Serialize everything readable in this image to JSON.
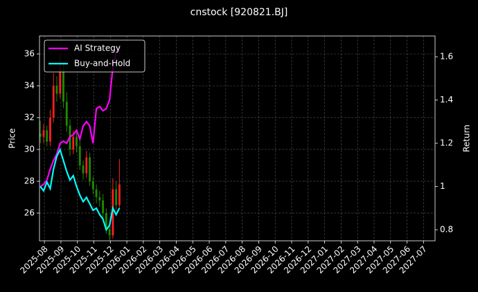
{
  "chart_data": {
    "type": "candlestick",
    "title": "cnstock [920821.BJ]",
    "ylabel": "Price",
    "y2label": "Return",
    "x": [
      -0.25,
      -0.05,
      0.15,
      0.35,
      0.55,
      0.75,
      0.95,
      1.15,
      1.35,
      1.55,
      1.75,
      1.95,
      2.15,
      2.35,
      2.55,
      2.75,
      2.95,
      3.15,
      3.35,
      3.55,
      3.75,
      3.95,
      4.15,
      4.35,
      4.55
    ],
    "open": [
      31.0,
      30.8,
      31.2,
      30.5,
      32.0,
      34.0,
      33.5,
      35.0,
      33.0,
      31.5,
      30.0,
      30.8,
      30.2,
      29.0,
      28.5,
      29.5,
      28.0,
      27.5,
      27.0,
      26.8,
      26.0,
      25.0,
      24.6,
      27.5,
      26.5
    ],
    "high": [
      31.8,
      31.6,
      31.5,
      32.5,
      34.8,
      34.6,
      36.0,
      35.5,
      33.6,
      31.9,
      31.2,
      31.1,
      30.6,
      29.3,
      29.9,
      29.8,
      28.3,
      27.8,
      27.4,
      27.2,
      26.3,
      25.4,
      28.2,
      28.0,
      29.4
    ],
    "low": [
      30.4,
      30.4,
      30.2,
      30.2,
      31.7,
      33.0,
      33.2,
      32.6,
      31.1,
      29.6,
      29.7,
      29.8,
      28.7,
      28.1,
      28.2,
      27.7,
      27.2,
      26.6,
      26.4,
      25.7,
      24.7,
      24.3,
      24.4,
      26.2,
      26.3
    ],
    "close": [
      30.8,
      31.2,
      30.5,
      32.0,
      34.0,
      33.5,
      35.0,
      33.0,
      31.5,
      30.0,
      30.8,
      30.2,
      29.0,
      28.5,
      29.5,
      28.0,
      27.5,
      27.0,
      26.8,
      26.0,
      25.0,
      24.6,
      27.5,
      26.5,
      27.8
    ],
    "up_color": "#ff2020",
    "down_color": "#1f8a00",
    "series": [
      {
        "name": "AI Strategy",
        "color": "#ff00ff",
        "axis": "y2",
        "values": [
          1.0,
          1.01,
          1.03,
          1.08,
          1.12,
          1.15,
          1.2,
          1.21,
          1.2,
          1.23,
          1.24,
          1.26,
          1.22,
          1.28,
          1.3,
          1.28,
          1.2,
          1.36,
          1.37,
          1.35,
          1.36,
          1.4,
          1.55,
          1.62,
          1.65
        ]
      },
      {
        "name": "Buy-and-Hold",
        "color": "#00ffff",
        "axis": "y2",
        "values": [
          1.0,
          0.98,
          1.02,
          0.99,
          1.08,
          1.14,
          1.17,
          1.12,
          1.07,
          1.03,
          1.05,
          1.0,
          0.96,
          0.93,
          0.95,
          0.92,
          0.89,
          0.9,
          0.87,
          0.85,
          0.8,
          0.82,
          0.9,
          0.87,
          0.9
        ]
      }
    ],
    "xlim": [
      -0.3,
      23.7
    ],
    "xticks": [
      {
        "value": 0,
        "label": "2025-08"
      },
      {
        "value": 1,
        "label": "2025-09"
      },
      {
        "value": 2,
        "label": "2025-10"
      },
      {
        "value": 3,
        "label": "2025-11"
      },
      {
        "value": 4,
        "label": "2025-12"
      },
      {
        "value": 5,
        "label": "2026-01"
      },
      {
        "value": 6,
        "label": "2026-02"
      },
      {
        "value": 7,
        "label": "2026-03"
      },
      {
        "value": 8,
        "label": "2026-04"
      },
      {
        "value": 9,
        "label": "2026-05"
      },
      {
        "value": 10,
        "label": "2026-06"
      },
      {
        "value": 11,
        "label": "2026-07"
      },
      {
        "value": 12,
        "label": "2026-08"
      },
      {
        "value": 13,
        "label": "2026-09"
      },
      {
        "value": 14,
        "label": "2026-10"
      },
      {
        "value": 15,
        "label": "2026-11"
      },
      {
        "value": 16,
        "label": "2026-12"
      },
      {
        "value": 17,
        "label": "2027-01"
      },
      {
        "value": 18,
        "label": "2027-02"
      },
      {
        "value": 19,
        "label": "2027-03"
      },
      {
        "value": 20,
        "label": "2027-04"
      },
      {
        "value": 21,
        "label": "2027-05"
      },
      {
        "value": 22,
        "label": "2027-06"
      },
      {
        "value": 23,
        "label": "2027-07"
      }
    ],
    "ylim": [
      24.26,
      37.13
    ],
    "yticks": [
      26,
      28,
      30,
      32,
      34,
      36
    ],
    "y2lim": [
      0.749,
      1.696
    ],
    "y2ticks": [
      0.8,
      1.0,
      1.2,
      1.4,
      1.6
    ],
    "grid": true,
    "legend": "upper left"
  }
}
